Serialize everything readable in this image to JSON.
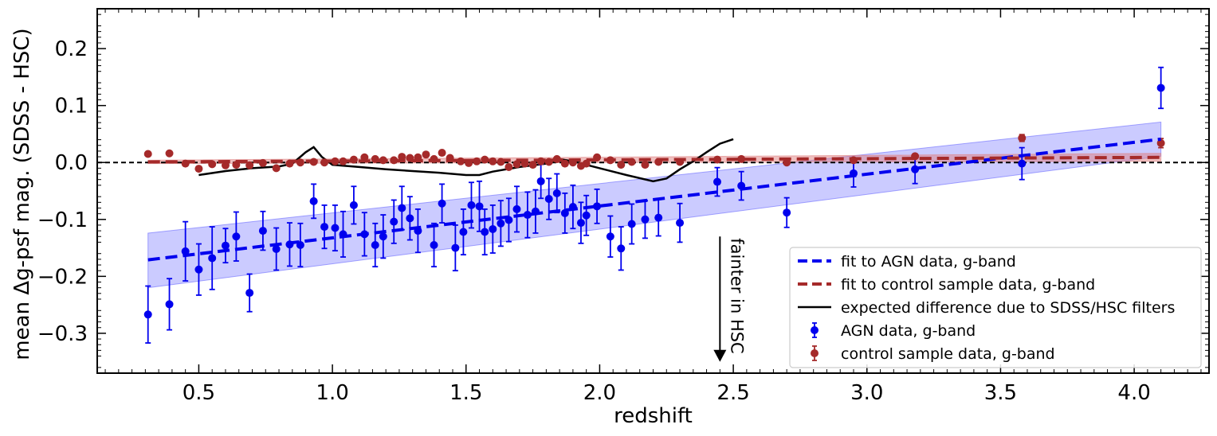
{
  "chart_data": {
    "type": "scatter",
    "xlabel": "redshift",
    "ylabel": "mean Δg-psf mag. (SDSS - HSC)",
    "xlim": [
      0.12,
      4.28
    ],
    "ylim": [
      -0.37,
      0.27
    ],
    "xticks": [
      0.5,
      1.0,
      1.5,
      2.0,
      2.5,
      3.0,
      3.5,
      4.0
    ],
    "xtick_labels": [
      "0.5",
      "1.0",
      "1.5",
      "2.0",
      "2.5",
      "3.0",
      "3.5",
      "4.0"
    ],
    "yticks": [
      -0.3,
      -0.2,
      -0.1,
      0.0,
      0.1,
      0.2
    ],
    "ytick_labels": [
      "−0.3",
      "−0.2",
      "−0.1",
      "0.0",
      "0.1",
      "0.2"
    ],
    "grid": false,
    "legend_position": "lower-right",
    "zero_line": 0.0,
    "annotation": {
      "text": "fainter in HSC",
      "arrow_x": 2.45,
      "arrow_from_y": -0.13,
      "arrow_to_y": -0.35
    },
    "series": [
      {
        "name": "fit to AGN data, g-band",
        "kind": "fit",
        "color": "#0000ee",
        "x": [
          0.31,
          4.1
        ],
        "y": [
          -0.171,
          0.041
        ],
        "band_upper": [
          -0.124,
          0.071
        ],
        "band_lower": [
          -0.22,
          0.011
        ],
        "band_color": "#6a6aff"
      },
      {
        "name": "fit to control sample data, g-band",
        "kind": "fit",
        "color": "#a52a2a",
        "x": [
          0.31,
          4.1
        ],
        "y": [
          0.001,
          0.009
        ],
        "band_upper": [
          0.004,
          0.016
        ],
        "band_lower": [
          -0.002,
          0.002
        ],
        "band_color": "#e08080"
      },
      {
        "name": "expected difference due to SDSS/HSC filters",
        "kind": "curve",
        "color": "#000000",
        "x": [
          0.5,
          0.6,
          0.7,
          0.8,
          0.85,
          0.9,
          0.93,
          0.96,
          1.0,
          1.1,
          1.2,
          1.3,
          1.4,
          1.5,
          1.55,
          1.6,
          1.7,
          1.8,
          1.85,
          1.9,
          2.0,
          2.1,
          2.2,
          2.25,
          2.3,
          2.35,
          2.4,
          2.45,
          2.5
        ],
        "y": [
          -0.022,
          -0.015,
          -0.01,
          -0.007,
          -0.002,
          0.018,
          0.027,
          0.01,
          -0.004,
          -0.008,
          -0.012,
          -0.015,
          -0.018,
          -0.022,
          -0.022,
          -0.016,
          -0.008,
          -0.002,
          0.006,
          0.002,
          -0.01,
          -0.022,
          -0.033,
          -0.028,
          -0.012,
          0.002,
          0.018,
          0.033,
          0.041
        ]
      },
      {
        "name": "AGN data, g-band",
        "kind": "errorbar",
        "color": "#0000ee",
        "x": [
          0.31,
          0.39,
          0.45,
          0.5,
          0.55,
          0.6,
          0.64,
          0.69,
          0.74,
          0.79,
          0.84,
          0.88,
          0.93,
          0.97,
          1.01,
          1.04,
          1.08,
          1.12,
          1.16,
          1.19,
          1.23,
          1.26,
          1.29,
          1.32,
          1.38,
          1.41,
          1.46,
          1.49,
          1.52,
          1.55,
          1.57,
          1.6,
          1.63,
          1.66,
          1.69,
          1.73,
          1.76,
          1.78,
          1.81,
          1.84,
          1.87,
          1.9,
          1.93,
          1.95,
          1.99,
          2.04,
          2.08,
          2.12,
          2.17,
          2.22,
          2.3,
          2.44,
          2.53,
          2.7,
          2.95,
          3.18,
          3.58,
          4.1
        ],
        "y": [
          -0.267,
          -0.249,
          -0.156,
          -0.188,
          -0.168,
          -0.146,
          -0.13,
          -0.229,
          -0.12,
          -0.152,
          -0.144,
          -0.145,
          -0.068,
          -0.113,
          -0.115,
          -0.126,
          -0.075,
          -0.126,
          -0.145,
          -0.13,
          -0.104,
          -0.08,
          -0.098,
          -0.12,
          -0.145,
          -0.072,
          -0.15,
          -0.122,
          -0.075,
          -0.077,
          -0.122,
          -0.117,
          -0.107,
          -0.101,
          -0.082,
          -0.092,
          -0.086,
          -0.033,
          -0.064,
          -0.054,
          -0.089,
          -0.078,
          -0.106,
          -0.093,
          -0.077,
          -0.13,
          -0.151,
          -0.108,
          -0.1,
          -0.097,
          -0.106,
          -0.034,
          -0.041,
          -0.088,
          -0.019,
          -0.012,
          -0.002,
          0.131
        ],
        "err": [
          0.05,
          0.045,
          0.052,
          0.045,
          0.055,
          0.03,
          0.043,
          0.033,
          0.034,
          0.037,
          0.038,
          0.038,
          0.03,
          0.038,
          0.04,
          0.04,
          0.033,
          0.038,
          0.038,
          0.038,
          0.038,
          0.038,
          0.038,
          0.038,
          0.038,
          0.034,
          0.04,
          0.04,
          0.04,
          0.044,
          0.04,
          0.042,
          0.04,
          0.038,
          0.04,
          0.04,
          0.038,
          0.03,
          0.036,
          0.034,
          0.035,
          0.038,
          0.036,
          0.035,
          0.03,
          0.036,
          0.038,
          0.035,
          0.033,
          0.032,
          0.034,
          0.025,
          0.025,
          0.026,
          0.024,
          0.025,
          0.028,
          0.036
        ]
      },
      {
        "name": "control sample data, g-band",
        "kind": "errorbar",
        "color": "#a52a2a",
        "x": [
          0.31,
          0.39,
          0.45,
          0.5,
          0.55,
          0.6,
          0.64,
          0.69,
          0.74,
          0.79,
          0.84,
          0.88,
          0.93,
          0.97,
          1.01,
          1.04,
          1.08,
          1.12,
          1.16,
          1.19,
          1.23,
          1.26,
          1.29,
          1.32,
          1.35,
          1.38,
          1.41,
          1.44,
          1.48,
          1.51,
          1.54,
          1.57,
          1.6,
          1.63,
          1.66,
          1.69,
          1.72,
          1.75,
          1.78,
          1.81,
          1.84,
          1.87,
          1.9,
          1.93,
          1.95,
          1.99,
          2.04,
          2.08,
          2.12,
          2.17,
          2.22,
          2.3,
          2.44,
          2.53,
          2.7,
          2.95,
          3.18,
          3.58,
          4.1
        ],
        "y": [
          0.015,
          0.016,
          -0.002,
          -0.011,
          -0.003,
          -0.005,
          -0.004,
          -0.005,
          -0.001,
          -0.01,
          -0.002,
          0.0,
          0.001,
          0.0,
          0.002,
          0.002,
          0.005,
          0.009,
          0.006,
          0.004,
          0.004,
          0.01,
          0.008,
          0.009,
          0.014,
          0.006,
          0.017,
          0.008,
          0.002,
          -0.001,
          0.002,
          0.005,
          0.002,
          0.001,
          -0.008,
          -0.003,
          -0.002,
          -0.004,
          0.002,
          0.001,
          0.006,
          -0.002,
          0.0,
          -0.006,
          -0.002,
          0.009,
          0.004,
          -0.004,
          0.001,
          -0.004,
          0.001,
          0.001,
          0.005,
          0.006,
          0.0,
          0.004,
          0.011,
          0.043,
          0.034
        ],
        "err": [
          0.004,
          0.004,
          0.003,
          0.003,
          0.003,
          0.003,
          0.003,
          0.003,
          0.003,
          0.003,
          0.003,
          0.003,
          0.003,
          0.003,
          0.003,
          0.003,
          0.003,
          0.003,
          0.003,
          0.003,
          0.003,
          0.003,
          0.003,
          0.003,
          0.003,
          0.003,
          0.003,
          0.003,
          0.003,
          0.003,
          0.003,
          0.003,
          0.003,
          0.003,
          0.003,
          0.003,
          0.003,
          0.003,
          0.003,
          0.003,
          0.003,
          0.003,
          0.003,
          0.003,
          0.003,
          0.003,
          0.003,
          0.003,
          0.003,
          0.003,
          0.003,
          0.003,
          0.003,
          0.003,
          0.004,
          0.004,
          0.005,
          0.006,
          0.008
        ]
      }
    ]
  }
}
